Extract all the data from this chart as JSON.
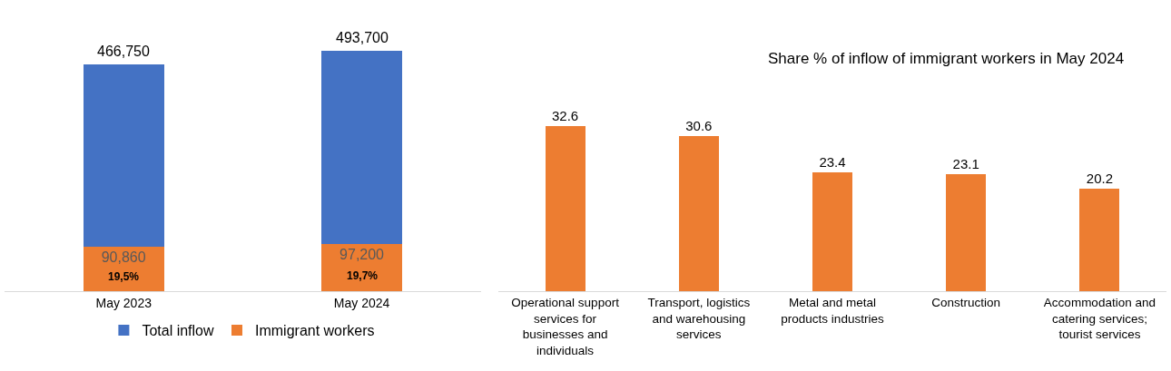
{
  "chart_data": [
    {
      "type": "bar",
      "stacked": true,
      "categories": [
        "May 2023",
        "May 2024"
      ],
      "series": [
        {
          "name": "Immigrant workers",
          "color": "#ed7d31",
          "values": [
            90860,
            97200
          ],
          "value_labels": [
            "90,860",
            "97,200"
          ]
        },
        {
          "name": "Total inflow",
          "color": "#4472c4",
          "values": [
            375890,
            396500
          ]
        }
      ],
      "totals": [
        "466,750",
        "493,700"
      ],
      "annotations": [
        "19,5%",
        "19,7%"
      ],
      "legend": "bottom"
    },
    {
      "type": "bar",
      "title": "Share % of inflow of immigrant workers in May 2024",
      "categories": [
        "Operational support services for businesses and individuals",
        "Transport, logistics and warehousing services",
        "Metal and metal products industries",
        "Construction",
        "Accommodation and catering services; tourist services"
      ],
      "values": [
        32.6,
        30.6,
        23.4,
        23.1,
        20.2
      ],
      "color": "#ed7d31",
      "data_labels": true
    }
  ]
}
